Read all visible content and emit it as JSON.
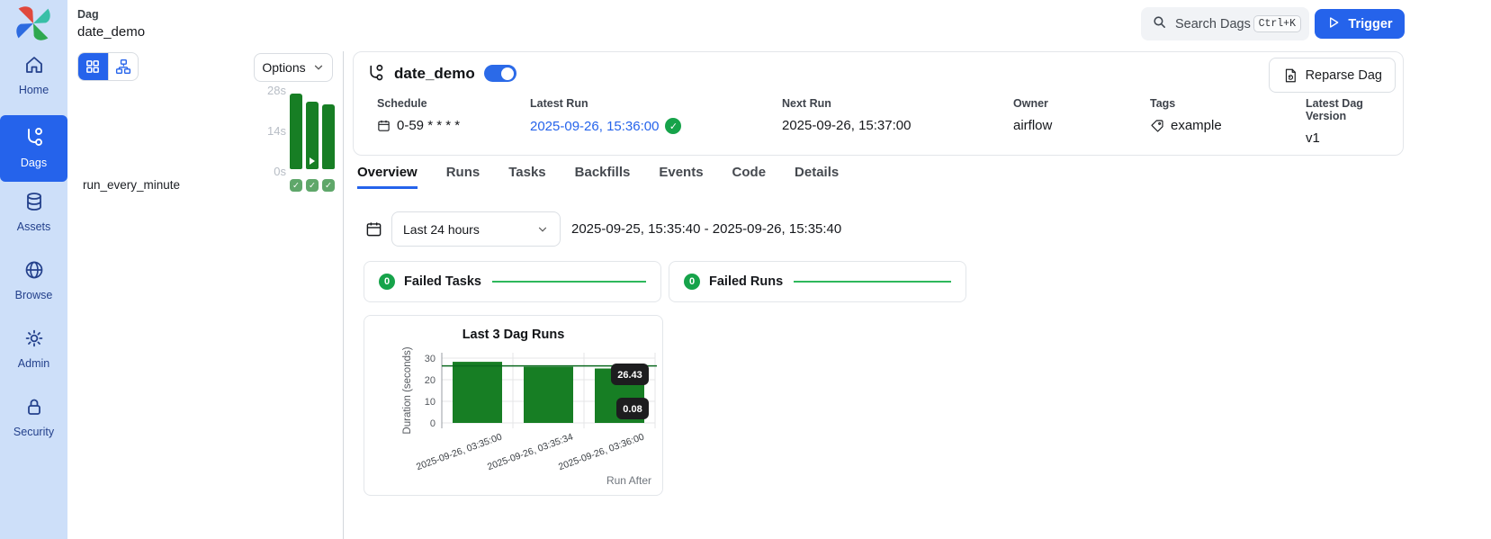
{
  "colors": {
    "accent": "#2563eb",
    "success_green": "#16a34a",
    "bar_green": "#177e24",
    "trend_green": "#2eb85c",
    "sidebar_bg": "#cddff9"
  },
  "sidebar": {
    "items": [
      {
        "label": "Home",
        "icon": "home-icon",
        "active": false
      },
      {
        "label": "Dags",
        "icon": "dag-branch-icon",
        "active": true
      },
      {
        "label": "Assets",
        "icon": "database-icon",
        "active": false
      },
      {
        "label": "Browse",
        "icon": "globe-icon",
        "active": false
      },
      {
        "label": "Admin",
        "icon": "gear-icon",
        "active": false
      },
      {
        "label": "Security",
        "icon": "lock-icon",
        "active": false
      }
    ]
  },
  "topbar": {
    "breadcrumb": "Dag",
    "dag_name": "date_demo",
    "search": {
      "placeholder": "Search Dags",
      "shortcut": "Ctrl+K"
    },
    "trigger_label": "Trigger"
  },
  "left_panel": {
    "options_label": "Options",
    "task_name": "run_every_minute",
    "mini_chart": {
      "y_ticks": [
        "28s",
        "14s",
        "0s"
      ],
      "values_seconds": [
        28,
        25,
        24
      ],
      "max_seconds": 28,
      "bar_color": "#177e24",
      "play_bar_index": 1,
      "statuses": [
        "success",
        "success",
        "success"
      ]
    }
  },
  "dag_header": {
    "title": "date_demo",
    "enabled": true,
    "reparse_label": "Reparse Dag",
    "fields": [
      {
        "label": "Schedule",
        "value": "0-59 * * * *"
      },
      {
        "label": "Latest Run",
        "value": "2025-09-26, 15:36:00",
        "status": "success"
      },
      {
        "label": "Next Run",
        "value": "2025-09-26, 15:37:00"
      },
      {
        "label": "Owner",
        "value": "airflow"
      },
      {
        "label": "Tags",
        "value": "example"
      },
      {
        "label": "Latest Dag Version",
        "value": "v1"
      }
    ]
  },
  "tabs": [
    {
      "label": "Overview",
      "active": true
    },
    {
      "label": "Runs",
      "active": false
    },
    {
      "label": "Tasks",
      "active": false
    },
    {
      "label": "Backfills",
      "active": false
    },
    {
      "label": "Events",
      "active": false
    },
    {
      "label": "Code",
      "active": false
    },
    {
      "label": "Details",
      "active": false
    }
  ],
  "overview": {
    "time_filter": {
      "selected": "Last 24 hours",
      "range": "2025-09-25, 15:35:40 - 2025-09-26, 15:35:40"
    },
    "stat_cards": [
      {
        "count": "0",
        "label": "Failed Tasks"
      },
      {
        "count": "0",
        "label": "Failed Runs"
      }
    ]
  },
  "chart_data": {
    "type": "bar",
    "title": "Last 3 Dag Runs",
    "x": [
      "2025-09-26, 03:35:00",
      "2025-09-26, 03:35:34",
      "2025-09-26, 03:36:00"
    ],
    "values": [
      28.3,
      26.0,
      25.2
    ],
    "ylabel": "Duration (seconds)",
    "xlabel": "Run After",
    "ylim": [
      0,
      30
    ],
    "yticks": [
      0,
      10,
      20,
      30
    ],
    "grid": true,
    "legend": false,
    "bar_color": "#177e24",
    "reference_line": 26.43,
    "annotations": [
      "26.43",
      "0.08"
    ]
  }
}
